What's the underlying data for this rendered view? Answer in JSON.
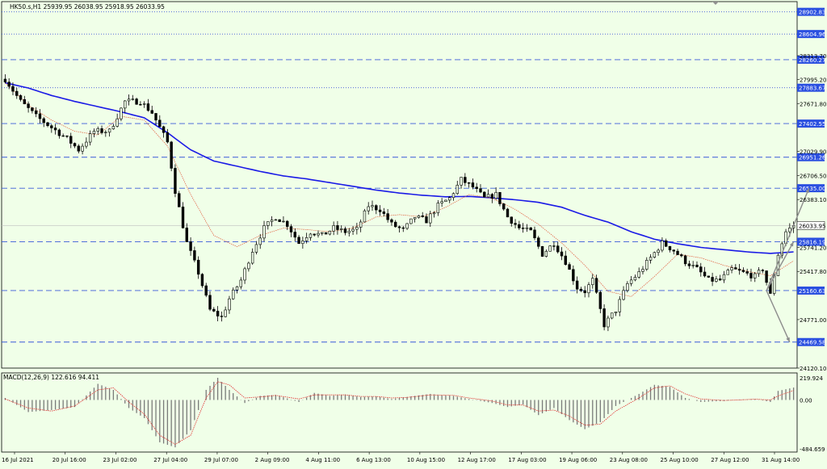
{
  "chart_data": {
    "type": "line",
    "title": "HK50.s,H1  25939.95 26038.95 25918.95 26033.95",
    "colors": {
      "background": "#f0ffe8",
      "candle": "#000000",
      "ma_slow": "#1a1ae6",
      "ma_fast": "#e05a3a",
      "level_line": "#3a5ad8",
      "level_label_bg": "#2a4fe0",
      "price_label_bg": "#ffffff",
      "arrow": "#8c8c8c",
      "macd_hist": "#7a7a7a",
      "macd_signal": "#e03030"
    },
    "price_axis": {
      "ylim": [
        24120,
        28975
      ],
      "ticks": [
        "28313.70",
        "27995.20",
        "27671.80",
        "27029.90",
        "26706.50",
        "26383.10",
        "25741.20",
        "25417.80",
        "24771.00",
        "24120.10"
      ]
    },
    "time_axis": {
      "xlabels": [
        "16 Jul 2021",
        "20 Jul 16:00",
        "23 Jul 02:00",
        "27 Jul 04:00",
        "29 Jul 07:00",
        "2 Aug 09:00",
        "4 Aug 11:00",
        "6 Aug 13:00",
        "10 Aug 15:00",
        "12 Aug 17:00",
        "17 Aug 03:00",
        "19 Aug 06:00",
        "23 Aug 08:00",
        "25 Aug 10:00",
        "27 Aug 12:00",
        "31 Aug 14:00"
      ]
    },
    "levels": [
      {
        "value": 28902.83,
        "label": "28902.83",
        "style": "dotted"
      },
      {
        "value": 28604.96,
        "label": "28604.96",
        "style": "dotted"
      },
      {
        "value": 28260.27,
        "label": "28260.27",
        "style": "dashed"
      },
      {
        "value": 27883.67,
        "label": "27883.67",
        "style": "dotted"
      },
      {
        "value": 27402.55,
        "label": "27402.55",
        "style": "dashed"
      },
      {
        "value": 26951.26,
        "label": "26951.26",
        "style": "dashed"
      },
      {
        "value": 26535.0,
        "label": "26535.00",
        "style": "dashed"
      },
      {
        "value": 25816.19,
        "label": "25816.19",
        "style": "dashed"
      },
      {
        "value": 25160.63,
        "label": "25160.63",
        "style": "dashed"
      },
      {
        "value": 24469.58,
        "label": "24469.58",
        "style": "dashed"
      }
    ],
    "current_price": {
      "value": 26033.95,
      "label": "26033.95"
    },
    "price_path": [
      [
        0,
        28000
      ],
      [
        4,
        27700
      ],
      [
        8,
        27500
      ],
      [
        12,
        27350
      ],
      [
        16,
        27200
      ],
      [
        19,
        27050
      ],
      [
        23,
        27300
      ],
      [
        27,
        27300
      ],
      [
        31,
        27700
      ],
      [
        35,
        27700
      ],
      [
        38,
        27550
      ],
      [
        42,
        27150
      ],
      [
        44,
        26500
      ],
      [
        47,
        25800
      ],
      [
        50,
        25400
      ],
      [
        53,
        24900
      ],
      [
        56,
        24800
      ],
      [
        58,
        25050
      ],
      [
        61,
        25300
      ],
      [
        64,
        25700
      ],
      [
        67,
        26000
      ],
      [
        70,
        26150
      ],
      [
        73,
        26050
      ],
      [
        76,
        25800
      ],
      [
        79,
        25950
      ],
      [
        82,
        25900
      ],
      [
        85,
        26000
      ],
      [
        88,
        25950
      ],
      [
        91,
        25980
      ],
      [
        94,
        26300
      ],
      [
        97,
        26250
      ],
      [
        100,
        26050
      ],
      [
        103,
        25970
      ],
      [
        106,
        26150
      ],
      [
        109,
        26100
      ],
      [
        112,
        26300
      ],
      [
        115,
        26400
      ],
      [
        118,
        26650
      ],
      [
        121,
        26550
      ],
      [
        124,
        26400
      ],
      [
        127,
        26450
      ],
      [
        130,
        26150
      ],
      [
        133,
        26000
      ],
      [
        136,
        25950
      ],
      [
        139,
        25650
      ],
      [
        142,
        25800
      ],
      [
        145,
        25550
      ],
      [
        148,
        25200
      ],
      [
        150,
        25150
      ],
      [
        152,
        25300
      ],
      [
        155,
        24700
      ],
      [
        158,
        24900
      ],
      [
        161,
        25250
      ],
      [
        164,
        25400
      ],
      [
        167,
        25600
      ],
      [
        170,
        25800
      ],
      [
        173,
        25700
      ],
      [
        176,
        25550
      ],
      [
        179,
        25450
      ],
      [
        182,
        25300
      ],
      [
        185,
        25300
      ],
      [
        188,
        25450
      ],
      [
        191,
        25400
      ],
      [
        194,
        25350
      ],
      [
        196,
        25450
      ],
      [
        198,
        25100
      ],
      [
        200,
        25650
      ],
      [
        202,
        25950
      ],
      [
        204,
        26034
      ]
    ],
    "ma_slow_path": [
      [
        0,
        27950
      ],
      [
        6,
        27880
      ],
      [
        12,
        27780
      ],
      [
        18,
        27700
      ],
      [
        24,
        27630
      ],
      [
        30,
        27560
      ],
      [
        36,
        27480
      ],
      [
        42,
        27280
      ],
      [
        48,
        27050
      ],
      [
        54,
        26900
      ],
      [
        60,
        26830
      ],
      [
        66,
        26760
      ],
      [
        72,
        26700
      ],
      [
        78,
        26660
      ],
      [
        84,
        26610
      ],
      [
        90,
        26560
      ],
      [
        96,
        26510
      ],
      [
        102,
        26470
      ],
      [
        108,
        26440
      ],
      [
        114,
        26420
      ],
      [
        120,
        26425
      ],
      [
        126,
        26405
      ],
      [
        132,
        26380
      ],
      [
        138,
        26345
      ],
      [
        144,
        26280
      ],
      [
        150,
        26170
      ],
      [
        156,
        26080
      ],
      [
        162,
        25950
      ],
      [
        168,
        25850
      ],
      [
        174,
        25790
      ],
      [
        180,
        25740
      ],
      [
        186,
        25710
      ],
      [
        192,
        25680
      ],
      [
        198,
        25660
      ],
      [
        204,
        25680
      ]
    ],
    "ma_fast_path": [
      [
        0,
        27950
      ],
      [
        6,
        27650
      ],
      [
        12,
        27450
      ],
      [
        18,
        27300
      ],
      [
        24,
        27250
      ],
      [
        30,
        27500
      ],
      [
        36,
        27450
      ],
      [
        42,
        27100
      ],
      [
        48,
        26450
      ],
      [
        54,
        25900
      ],
      [
        60,
        25750
      ],
      [
        66,
        25900
      ],
      [
        72,
        26000
      ],
      [
        78,
        25980
      ],
      [
        84,
        25950
      ],
      [
        90,
        26000
      ],
      [
        96,
        26150
      ],
      [
        102,
        26180
      ],
      [
        108,
        26150
      ],
      [
        114,
        26280
      ],
      [
        120,
        26450
      ],
      [
        126,
        26400
      ],
      [
        132,
        26250
      ],
      [
        138,
        26050
      ],
      [
        144,
        25800
      ],
      [
        150,
        25500
      ],
      [
        156,
        25150
      ],
      [
        162,
        25080
      ],
      [
        168,
        25350
      ],
      [
        174,
        25650
      ],
      [
        180,
        25600
      ],
      [
        186,
        25500
      ],
      [
        192,
        25420
      ],
      [
        198,
        25360
      ],
      [
        204,
        25560
      ]
    ],
    "projection_arrows": [
      {
        "from": [
          197,
          25160
        ],
        "to": [
          208,
          26535
        ]
      },
      {
        "from": [
          197,
          25160
        ],
        "to": [
          204,
          25816
        ]
      },
      {
        "from": [
          197,
          25160
        ],
        "to": [
          203,
          24469
        ]
      }
    ],
    "macd_panel": {
      "label": "MACD(12,26,9) 122.616 94.411",
      "ylim": [
        -484.659,
        219.924
      ],
      "ticks": [
        "219.924",
        "0.00",
        "-484.659"
      ],
      "histogram_path": [
        [
          0,
          20
        ],
        [
          6,
          -120
        ],
        [
          12,
          -100
        ],
        [
          18,
          -70
        ],
        [
          24,
          160
        ],
        [
          28,
          100
        ],
        [
          32,
          -80
        ],
        [
          36,
          -180
        ],
        [
          40,
          -420
        ],
        [
          44,
          -470
        ],
        [
          48,
          -300
        ],
        [
          52,
          100
        ],
        [
          55,
          220
        ],
        [
          58,
          100
        ],
        [
          62,
          -30
        ],
        [
          66,
          40
        ],
        [
          70,
          50
        ],
        [
          76,
          -20
        ],
        [
          80,
          70
        ],
        [
          84,
          40
        ],
        [
          88,
          55
        ],
        [
          92,
          30
        ],
        [
          96,
          35
        ],
        [
          100,
          10
        ],
        [
          104,
          30
        ],
        [
          110,
          60
        ],
        [
          116,
          40
        ],
        [
          120,
          10
        ],
        [
          126,
          -30
        ],
        [
          130,
          -70
        ],
        [
          134,
          -45
        ],
        [
          138,
          -150
        ],
        [
          142,
          -80
        ],
        [
          146,
          -200
        ],
        [
          150,
          -290
        ],
        [
          154,
          -220
        ],
        [
          158,
          -60
        ],
        [
          164,
          60
        ],
        [
          168,
          150
        ],
        [
          172,
          130
        ],
        [
          176,
          20
        ],
        [
          180,
          -20
        ],
        [
          186,
          -10
        ],
        [
          190,
          5
        ],
        [
          194,
          10
        ],
        [
          198,
          -20
        ],
        [
          200,
          90
        ],
        [
          204,
          123
        ]
      ],
      "signal_path": [
        [
          0,
          10
        ],
        [
          6,
          -80
        ],
        [
          12,
          -110
        ],
        [
          18,
          -60
        ],
        [
          24,
          100
        ],
        [
          28,
          120
        ],
        [
          32,
          -20
        ],
        [
          36,
          -140
        ],
        [
          40,
          -350
        ],
        [
          44,
          -440
        ],
        [
          48,
          -350
        ],
        [
          52,
          20
        ],
        [
          55,
          180
        ],
        [
          58,
          150
        ],
        [
          62,
          20
        ],
        [
          66,
          30
        ],
        [
          70,
          45
        ],
        [
          76,
          10
        ],
        [
          80,
          50
        ],
        [
          84,
          50
        ],
        [
          88,
          50
        ],
        [
          92,
          35
        ],
        [
          96,
          35
        ],
        [
          100,
          20
        ],
        [
          104,
          25
        ],
        [
          110,
          50
        ],
        [
          116,
          45
        ],
        [
          120,
          20
        ],
        [
          126,
          -10
        ],
        [
          130,
          -50
        ],
        [
          134,
          -50
        ],
        [
          138,
          -110
        ],
        [
          142,
          -100
        ],
        [
          146,
          -160
        ],
        [
          150,
          -250
        ],
        [
          154,
          -240
        ],
        [
          158,
          -110
        ],
        [
          164,
          20
        ],
        [
          168,
          120
        ],
        [
          172,
          140
        ],
        [
          176,
          60
        ],
        [
          180,
          10
        ],
        [
          186,
          -5
        ],
        [
          190,
          0
        ],
        [
          194,
          8
        ],
        [
          198,
          0
        ],
        [
          200,
          40
        ],
        [
          204,
          94
        ]
      ]
    }
  }
}
